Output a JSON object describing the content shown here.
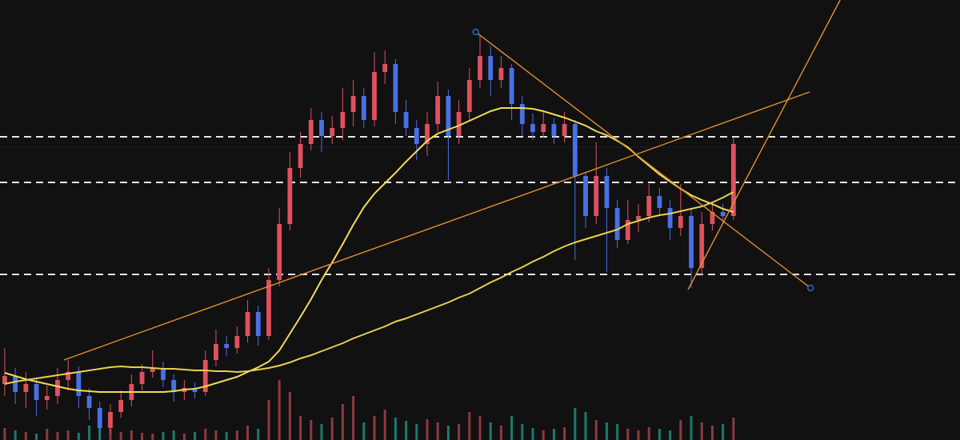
{
  "chart_data": {
    "type": "candlestick",
    "xlim": [
      -0.45,
      90.45
    ],
    "ylim": [
      0,
      550
    ],
    "background": "#111112",
    "up_color": "#e0505e",
    "down_color": "#4a70e6",
    "open": [
      70,
      80,
      60,
      70,
      50,
      55,
      75,
      85,
      55,
      40,
      15,
      35,
      50,
      70,
      85,
      90,
      75,
      60,
      65,
      60,
      100,
      120,
      115,
      130,
      160,
      130,
      200,
      270,
      340,
      370,
      400,
      380,
      390,
      410,
      430,
      400,
      460,
      470,
      410,
      390,
      370,
      395,
      430,
      380,
      410,
      450,
      480,
      450,
      465,
      420,
      395,
      385,
      395,
      380,
      395,
      330,
      280,
      330,
      290,
      250,
      275,
      280,
      305,
      290,
      265,
      280,
      215,
      270,
      285,
      280
    ],
    "high": [
      115,
      90,
      85,
      78,
      68,
      90,
      100,
      92,
      65,
      48,
      45,
      62,
      82,
      95,
      112,
      98,
      82,
      75,
      72,
      112,
      138,
      130,
      142,
      175,
      168,
      215,
      290,
      360,
      385,
      415,
      410,
      405,
      440,
      450,
      440,
      485,
      487,
      476,
      425,
      400,
      410,
      448,
      438,
      425,
      465,
      505,
      492,
      480,
      470,
      430,
      408,
      410,
      402,
      410,
      400,
      335,
      372,
      340,
      300,
      300,
      295,
      320,
      315,
      300,
      320,
      290,
      285,
      298,
      295,
      378
    ],
    "low": [
      55,
      45,
      40,
      30,
      38,
      45,
      62,
      40,
      25,
      2,
      8,
      28,
      42,
      62,
      78,
      66,
      48,
      50,
      52,
      55,
      92,
      105,
      108,
      122,
      118,
      125,
      192,
      262,
      328,
      362,
      360,
      370,
      375,
      392,
      390,
      392,
      445,
      395,
      380,
      350,
      355,
      385,
      325,
      370,
      400,
      440,
      430,
      440,
      400,
      380,
      375,
      378,
      370,
      372,
      225,
      265,
      270,
      210,
      240,
      245,
      260,
      272,
      280,
      250,
      255,
      190,
      205,
      262,
      270,
      275
    ],
    "close": [
      80,
      60,
      70,
      50,
      55,
      75,
      85,
      55,
      40,
      15,
      35,
      50,
      70,
      85,
      90,
      75,
      60,
      65,
      60,
      100,
      120,
      115,
      130,
      160,
      130,
      200,
      270,
      340,
      370,
      400,
      380,
      390,
      410,
      430,
      400,
      460,
      470,
      410,
      390,
      370,
      395,
      430,
      380,
      410,
      450,
      480,
      450,
      465,
      420,
      395,
      385,
      395,
      380,
      395,
      330,
      280,
      330,
      290,
      250,
      275,
      280,
      305,
      290,
      265,
      280,
      215,
      270,
      285,
      280,
      370
    ],
    "volume": [
      15,
      12,
      10,
      8,
      14,
      10,
      12,
      9,
      18,
      22,
      14,
      10,
      12,
      9,
      8,
      10,
      12,
      8,
      10,
      14,
      12,
      10,
      12,
      18,
      14,
      50,
      75,
      60,
      30,
      25,
      20,
      28,
      45,
      55,
      22,
      30,
      38,
      28,
      24,
      20,
      26,
      22,
      18,
      20,
      35,
      30,
      22,
      18,
      30,
      20,
      15,
      12,
      14,
      16,
      40,
      35,
      25,
      22,
      20,
      14,
      12,
      16,
      14,
      12,
      25,
      30,
      22,
      18,
      20,
      28
    ],
    "volume_up_color": "#8e3a40",
    "volume_down_color": "#1d7a6b",
    "lines": [
      {
        "color": "#f2dc55",
        "values": [
          84,
          80,
          76,
          73,
          70,
          67,
          64,
          62,
          61,
          60,
          60,
          60,
          60,
          60,
          60,
          60,
          61,
          63,
          64,
          67,
          71,
          75,
          79,
          85,
          91,
          98,
          112,
          133,
          154,
          176,
          200,
          222,
          245,
          269,
          291,
          308,
          321,
          334,
          348,
          361,
          374,
          383,
          388,
          393,
          399,
          405,
          411,
          415,
          415,
          415,
          414,
          411,
          407,
          403,
          398,
          393,
          386,
          381,
          374,
          366,
          354,
          343,
          332,
          323,
          314,
          306,
          300,
          295,
          289,
          285
        ]
      },
      {
        "color": "#e8d24c",
        "values": [
          70,
          73,
          75,
          77,
          79,
          81,
          83,
          85,
          87,
          89,
          91,
          92,
          91,
          91,
          90,
          89,
          89,
          88,
          87,
          87,
          86,
          86,
          85,
          86,
          88,
          90,
          93,
          97,
          102,
          106,
          111,
          116,
          121,
          127,
          132,
          137,
          142,
          148,
          152,
          157,
          162,
          167,
          172,
          178,
          183,
          190,
          197,
          203,
          210,
          216,
          223,
          229,
          236,
          242,
          247,
          251,
          255,
          259,
          263,
          270,
          274,
          278,
          281,
          283,
          286,
          289,
          292,
          297,
          303,
          310
        ]
      }
    ],
    "levels": [
      {
        "value": 379,
        "color": "#e6e6e6",
        "style": "dashed"
      },
      {
        "value": 366,
        "color": "#2c4a7a",
        "style": "dotted"
      },
      {
        "value": 322,
        "color": "#e6e6e6",
        "style": "dashed"
      },
      {
        "value": 207,
        "color": "#e6e6e6",
        "style": "dashed"
      }
    ],
    "trendlines": [
      {
        "color": "#e2902e",
        "x": [
          5.6,
          76.2
        ],
        "values": [
          100,
          435
        ],
        "handles": false
      },
      {
        "color": "#e2902e",
        "x": [
          44.6,
          76.3
        ],
        "values": [
          510,
          190
        ],
        "handles": true
      },
      {
        "color": "#e2902e",
        "x": [
          64.7,
          79.1
        ],
        "values": [
          188,
          550
        ],
        "handles": false
      }
    ],
    "handle_color": "#3a78e0"
  }
}
